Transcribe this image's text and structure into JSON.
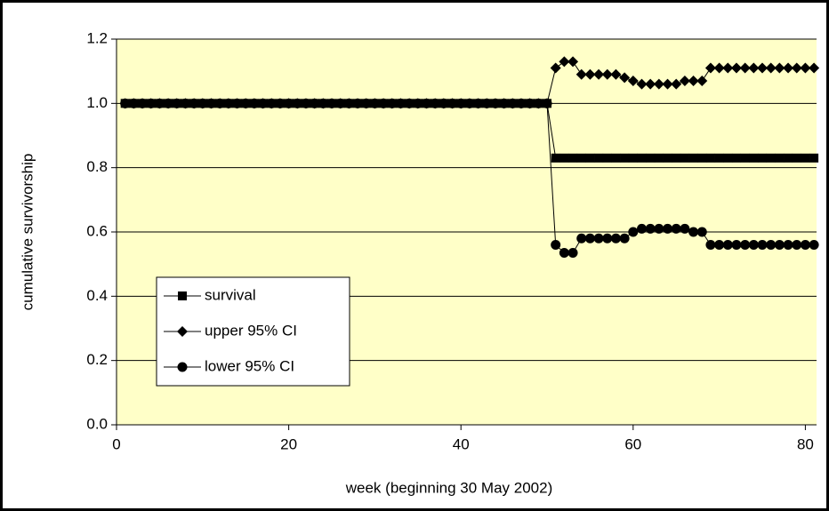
{
  "chart_data": {
    "type": "line",
    "xlabel": "week (beginning 30 May 2002)",
    "ylabel": "cumulative survivorship",
    "x": [
      1,
      2,
      3,
      4,
      5,
      6,
      7,
      8,
      9,
      10,
      11,
      12,
      13,
      14,
      15,
      16,
      17,
      18,
      19,
      20,
      21,
      22,
      23,
      24,
      25,
      26,
      27,
      28,
      29,
      30,
      31,
      32,
      33,
      34,
      35,
      36,
      37,
      38,
      39,
      40,
      41,
      42,
      43,
      44,
      45,
      46,
      47,
      48,
      49,
      50,
      51,
      52,
      53,
      54,
      55,
      56,
      57,
      58,
      59,
      60,
      61,
      62,
      63,
      64,
      65,
      66,
      67,
      68,
      69,
      70,
      71,
      72,
      73,
      74,
      75,
      76,
      77,
      78,
      79,
      80,
      81
    ],
    "series": [
      {
        "name": "survival",
        "color": "#000000",
        "marker": "square",
        "values": [
          1,
          1,
          1,
          1,
          1,
          1,
          1,
          1,
          1,
          1,
          1,
          1,
          1,
          1,
          1,
          1,
          1,
          1,
          1,
          1,
          1,
          1,
          1,
          1,
          1,
          1,
          1,
          1,
          1,
          1,
          1,
          1,
          1,
          1,
          1,
          1,
          1,
          1,
          1,
          1,
          1,
          1,
          1,
          1,
          1,
          1,
          1,
          1,
          1,
          1,
          0.83,
          0.83,
          0.83,
          0.83,
          0.83,
          0.83,
          0.83,
          0.83,
          0.83,
          0.83,
          0.83,
          0.83,
          0.83,
          0.83,
          0.83,
          0.83,
          0.83,
          0.83,
          0.83,
          0.83,
          0.83,
          0.83,
          0.83,
          0.83,
          0.83,
          0.83,
          0.83,
          0.83,
          0.83,
          0.83,
          0.83
        ]
      },
      {
        "name": "upper 95% CI",
        "color": "#000000",
        "marker": "diamond",
        "values": [
          1,
          1,
          1,
          1,
          1,
          1,
          1,
          1,
          1,
          1,
          1,
          1,
          1,
          1,
          1,
          1,
          1,
          1,
          1,
          1,
          1,
          1,
          1,
          1,
          1,
          1,
          1,
          1,
          1,
          1,
          1,
          1,
          1,
          1,
          1,
          1,
          1,
          1,
          1,
          1,
          1,
          1,
          1,
          1,
          1,
          1,
          1,
          1,
          1,
          1,
          1.11,
          1.13,
          1.13,
          1.09,
          1.09,
          1.09,
          1.09,
          1.09,
          1.08,
          1.07,
          1.06,
          1.06,
          1.06,
          1.06,
          1.06,
          1.07,
          1.07,
          1.07,
          1.11,
          1.11,
          1.11,
          1.11,
          1.11,
          1.11,
          1.11,
          1.11,
          1.11,
          1.11,
          1.11,
          1.11,
          1.11
        ]
      },
      {
        "name": "lower 95% CI",
        "color": "#000000",
        "marker": "circle",
        "values": [
          1,
          1,
          1,
          1,
          1,
          1,
          1,
          1,
          1,
          1,
          1,
          1,
          1,
          1,
          1,
          1,
          1,
          1,
          1,
          1,
          1,
          1,
          1,
          1,
          1,
          1,
          1,
          1,
          1,
          1,
          1,
          1,
          1,
          1,
          1,
          1,
          1,
          1,
          1,
          1,
          1,
          1,
          1,
          1,
          1,
          1,
          1,
          1,
          1,
          1,
          0.56,
          0.535,
          0.535,
          0.58,
          0.58,
          0.58,
          0.58,
          0.58,
          0.58,
          0.6,
          0.61,
          0.61,
          0.61,
          0.61,
          0.61,
          0.61,
          0.6,
          0.6,
          0.56,
          0.56,
          0.56,
          0.56,
          0.56,
          0.56,
          0.56,
          0.56,
          0.56,
          0.56,
          0.56,
          0.56,
          0.56
        ]
      }
    ],
    "xlim": [
      0,
      81.3
    ],
    "xticks": [
      0,
      20,
      40,
      60,
      80
    ],
    "ylim": [
      0,
      1.2
    ],
    "yticks": [
      {
        "value": 0,
        "label": "0.0"
      },
      0.2,
      0.4,
      0.6,
      0.8,
      {
        "value": 1,
        "label": "1.0"
      },
      1.2
    ],
    "grid": true,
    "legend": "lower left",
    "background": "#ffffc8"
  }
}
